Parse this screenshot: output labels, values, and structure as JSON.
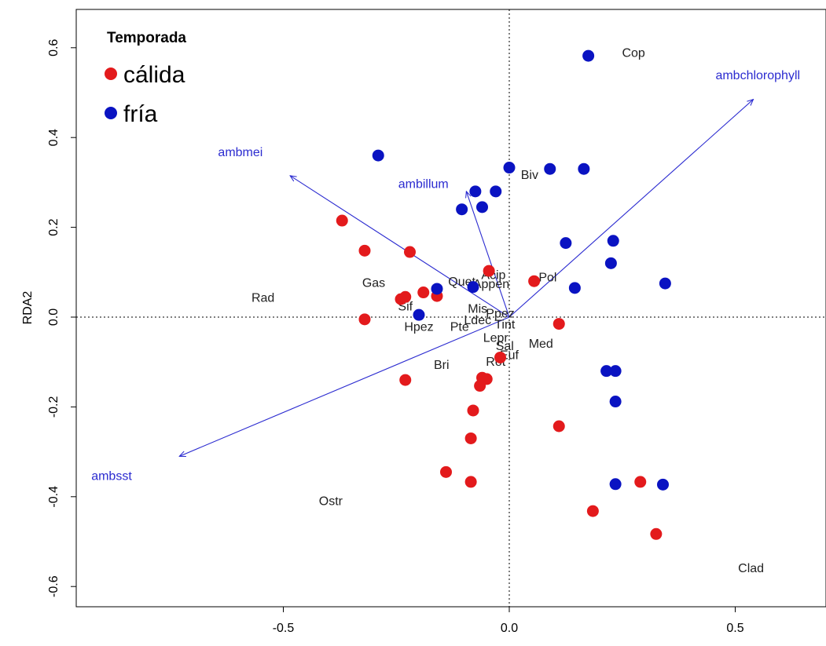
{
  "chart_data": {
    "type": "scatter",
    "title": "",
    "xlabel": "",
    "ylabel": "RDA2",
    "xlim": [
      -0.97,
      0.7
    ],
    "ylim": [
      -0.646,
      0.702
    ],
    "x_ticks": [
      -0.5,
      0.0,
      0.5
    ],
    "x_tick_labels": [
      "-0.5",
      "0.0",
      "0.5"
    ],
    "y_ticks": [
      -0.6,
      -0.4,
      -0.2,
      0.0,
      0.2,
      0.4,
      0.6
    ],
    "y_tick_labels": [
      "-0.6",
      "-0.4",
      "-0.2",
      "0.0",
      "0.2",
      "0.4",
      "0.6"
    ],
    "grid": false,
    "reference_lines": {
      "x": 0,
      "y": 0,
      "style": "dotted"
    },
    "legend": {
      "title": "Temporada",
      "position": "top-left",
      "entries": [
        {
          "label": "cálida",
          "color": "#e31a1c"
        },
        {
          "label": "fría",
          "color": "#0a13c2"
        }
      ]
    },
    "series": [
      {
        "name": "cálida",
        "color": "#e31a1c",
        "points": [
          [
            -0.37,
            0.215
          ],
          [
            -0.32,
            0.148
          ],
          [
            -0.22,
            0.145
          ],
          [
            -0.32,
            -0.005
          ],
          [
            -0.24,
            0.04
          ],
          [
            -0.23,
            0.045
          ],
          [
            -0.19,
            0.055
          ],
          [
            -0.16,
            0.047
          ],
          [
            -0.045,
            0.103
          ],
          [
            0.055,
            0.08
          ],
          [
            0.11,
            -0.015
          ],
          [
            -0.23,
            -0.14
          ],
          [
            -0.06,
            -0.135
          ],
          [
            -0.05,
            -0.138
          ],
          [
            -0.065,
            -0.153
          ],
          [
            -0.02,
            -0.09
          ],
          [
            -0.08,
            -0.208
          ],
          [
            -0.085,
            -0.27
          ],
          [
            -0.14,
            -0.345
          ],
          [
            -0.085,
            -0.367
          ],
          [
            0.11,
            -0.243
          ],
          [
            0.185,
            -0.432
          ],
          [
            0.29,
            -0.367
          ],
          [
            0.325,
            -0.483
          ]
        ]
      },
      {
        "name": "fría",
        "color": "#0a13c2",
        "points": [
          [
            0.175,
            0.582
          ],
          [
            -0.29,
            0.36
          ],
          [
            0.0,
            0.333
          ],
          [
            0.09,
            0.33
          ],
          [
            0.165,
            0.33
          ],
          [
            -0.075,
            0.28
          ],
          [
            -0.03,
            0.28
          ],
          [
            -0.06,
            0.245
          ],
          [
            -0.105,
            0.24
          ],
          [
            0.125,
            0.165
          ],
          [
            0.23,
            0.17
          ],
          [
            0.225,
            0.12
          ],
          [
            0.345,
            0.075
          ],
          [
            0.145,
            0.065
          ],
          [
            -0.08,
            0.067
          ],
          [
            -0.16,
            0.063
          ],
          [
            -0.2,
            0.005
          ],
          [
            0.215,
            -0.12
          ],
          [
            0.235,
            -0.12
          ],
          [
            0.235,
            -0.188
          ],
          [
            0.235,
            -0.372
          ],
          [
            0.34,
            -0.373
          ]
        ]
      }
    ],
    "species": [
      {
        "label": "Cop",
        "x": 0.275,
        "y": 0.59
      },
      {
        "label": "Biv",
        "x": 0.045,
        "y": 0.318
      },
      {
        "label": "Gas",
        "x": -0.3,
        "y": 0.078
      },
      {
        "label": "Rad",
        "x": -0.545,
        "y": 0.045
      },
      {
        "label": "Pol",
        "x": 0.085,
        "y": 0.09
      },
      {
        "label": "Acip",
        "x": -0.035,
        "y": 0.095
      },
      {
        "label": "Quet",
        "x": -0.105,
        "y": 0.08
      },
      {
        "label": "Appen",
        "x": -0.04,
        "y": 0.075
      },
      {
        "label": "Sif",
        "x": -0.23,
        "y": 0.025
      },
      {
        "label": "Mis",
        "x": -0.07,
        "y": 0.02
      },
      {
        "label": "Ppez",
        "x": -0.02,
        "y": 0.01
      },
      {
        "label": "Hpez",
        "x": -0.2,
        "y": -0.02
      },
      {
        "label": "Pte",
        "x": -0.11,
        "y": -0.02
      },
      {
        "label": "Ldec",
        "x": -0.07,
        "y": -0.005
      },
      {
        "label": "Tint",
        "x": -0.01,
        "y": -0.015
      },
      {
        "label": "Lepr",
        "x": -0.03,
        "y": -0.045
      },
      {
        "label": "Sal",
        "x": -0.01,
        "y": -0.063
      },
      {
        "label": "Med",
        "x": 0.07,
        "y": -0.058
      },
      {
        "label": "Euf",
        "x": 0.0,
        "y": -0.083
      },
      {
        "label": "Rot",
        "x": -0.03,
        "y": -0.098
      },
      {
        "label": "Bri",
        "x": -0.15,
        "y": -0.105
      },
      {
        "label": "Ostr",
        "x": -0.395,
        "y": -0.408
      },
      {
        "label": "Clad",
        "x": 0.535,
        "y": -0.558
      }
    ],
    "arrows": [
      {
        "label": "ambmei",
        "x": -0.485,
        "y": 0.315,
        "label_x": -0.595,
        "label_y": 0.358
      },
      {
        "label": "ambillum",
        "x": -0.095,
        "y": 0.28,
        "label_x": -0.19,
        "label_y": 0.288
      },
      {
        "label": "ambchlorophyll",
        "x": 0.54,
        "y": 0.485,
        "label_x": 0.55,
        "label_y": 0.53
      },
      {
        "label": "ambsst",
        "x": -0.73,
        "y": -0.31,
        "label_x": -0.88,
        "label_y": -0.363
      }
    ]
  }
}
